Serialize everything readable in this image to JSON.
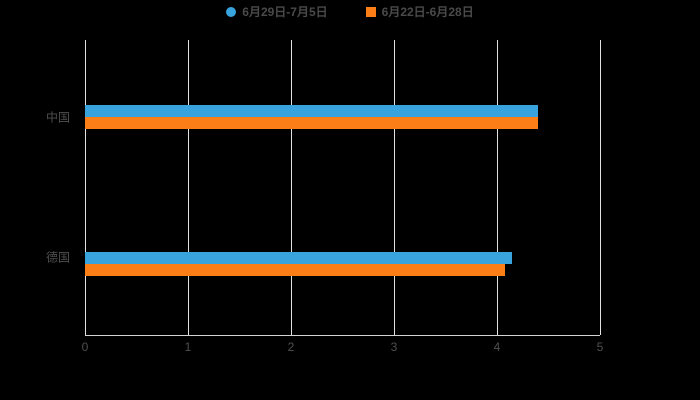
{
  "chart_data": {
    "type": "bar",
    "orientation": "horizontal",
    "title": "",
    "xlabel": "",
    "ylabel": "",
    "categories": [
      "中国",
      "德国"
    ],
    "series": [
      {
        "name": "6月29日-7月5日",
        "color": "#38A3DC",
        "marker": "circle",
        "values": [
          4.4,
          4.15
        ]
      },
      {
        "name": "6月22日-6月28日",
        "color": "#FC7E16",
        "marker": "square",
        "values": [
          4.4,
          4.08
        ]
      }
    ],
    "xlim": [
      0,
      5
    ],
    "x_tick_labels": [
      "0",
      "1",
      "2",
      "3",
      "4",
      "5"
    ],
    "grid": true,
    "legend_position": "top",
    "colors": {
      "grid": "#E2E2E2",
      "axis": "#D4D4D4",
      "text": "#4F4F4F",
      "background": "#000000"
    }
  }
}
